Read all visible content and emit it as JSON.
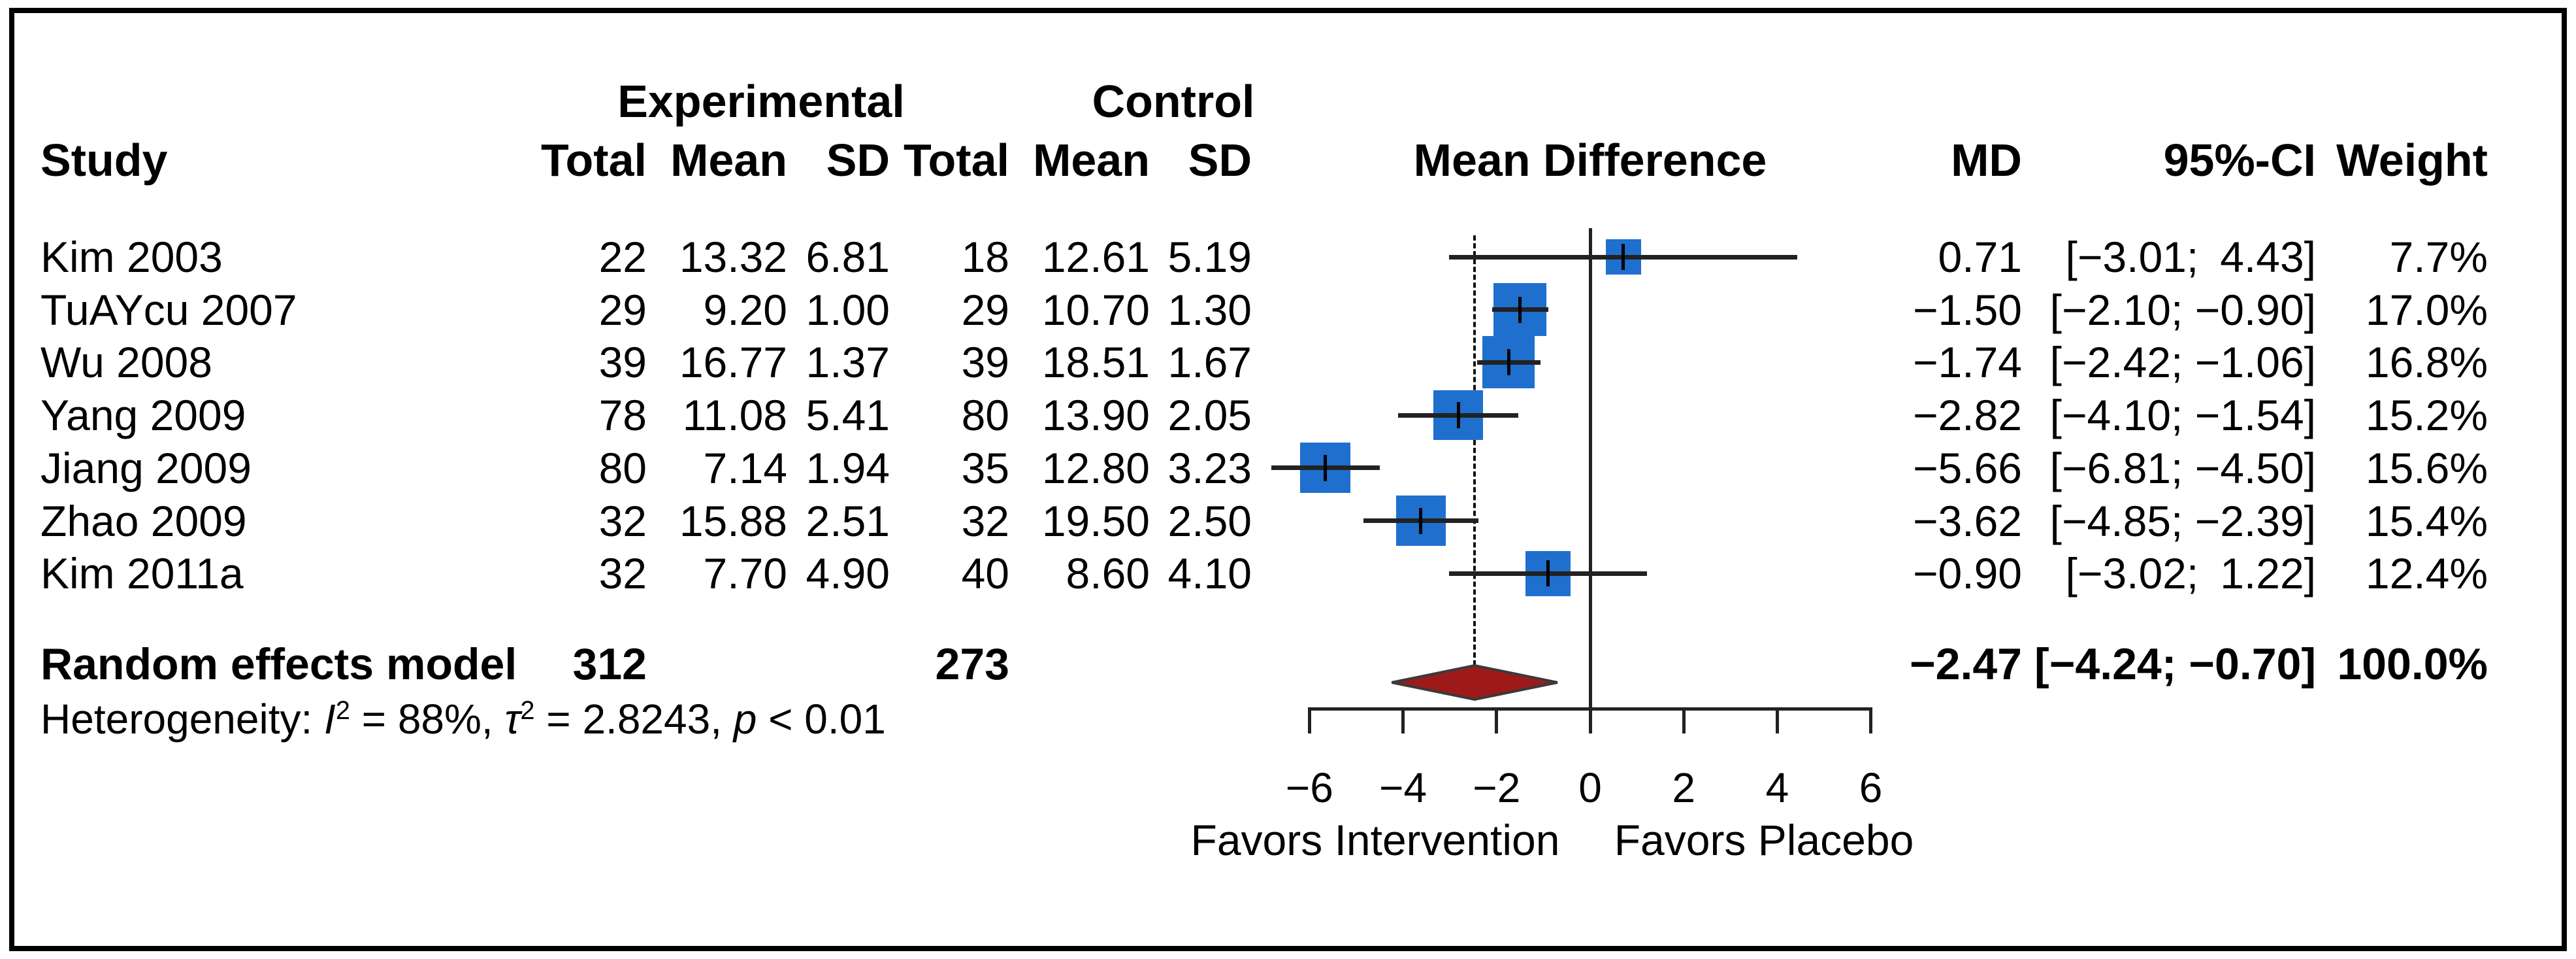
{
  "header": {
    "study": "Study",
    "group_experimental": "Experimental",
    "group_control": "Control",
    "col_total_exp": "Total",
    "col_mean_exp": "Mean",
    "col_sd_exp": "SD",
    "col_total_ctrl": "Total",
    "col_mean_ctrl": "Mean",
    "col_sd_ctrl": "SD",
    "plot_title": "Mean Difference",
    "col_md": "MD",
    "col_ci": "95%-CI",
    "col_weight": "Weight"
  },
  "chart_data": {
    "type": "forest",
    "effect_measure": "Mean Difference",
    "x_axis": {
      "ticks": [
        -6,
        -4,
        -2,
        0,
        2,
        4,
        6
      ],
      "range_shown": [
        -6.81,
        6
      ],
      "zero_line": 0,
      "dashed_reference_line": -2.47,
      "label_left": "Favors Intervention",
      "label_right": "Favors Placebo"
    },
    "studies": [
      {
        "study": "Kim 2003",
        "exp_total": 22,
        "exp_mean": 13.32,
        "exp_sd": 6.81,
        "ctrl_total": 18,
        "ctrl_mean": 12.61,
        "ctrl_sd": 5.19,
        "md": 0.71,
        "ci_low": -3.01,
        "ci_high": 4.43,
        "weight": 7.7
      },
      {
        "study": "TuAYcu 2007",
        "exp_total": 29,
        "exp_mean": 9.2,
        "exp_sd": 1.0,
        "ctrl_total": 29,
        "ctrl_mean": 10.7,
        "ctrl_sd": 1.3,
        "md": -1.5,
        "ci_low": -2.1,
        "ci_high": -0.9,
        "weight": 17.0
      },
      {
        "study": "Wu 2008",
        "exp_total": 39,
        "exp_mean": 16.77,
        "exp_sd": 1.37,
        "ctrl_total": 39,
        "ctrl_mean": 18.51,
        "ctrl_sd": 1.67,
        "md": -1.74,
        "ci_low": -2.42,
        "ci_high": -1.06,
        "weight": 16.8
      },
      {
        "study": "Yang 2009",
        "exp_total": 78,
        "exp_mean": 11.08,
        "exp_sd": 5.41,
        "ctrl_total": 80,
        "ctrl_mean": 13.9,
        "ctrl_sd": 2.05,
        "md": -2.82,
        "ci_low": -4.1,
        "ci_high": -1.54,
        "weight": 15.2
      },
      {
        "study": "Jiang 2009",
        "exp_total": 80,
        "exp_mean": 7.14,
        "exp_sd": 1.94,
        "ctrl_total": 35,
        "ctrl_mean": 12.8,
        "ctrl_sd": 3.23,
        "md": -5.66,
        "ci_low": -6.81,
        "ci_high": -4.5,
        "weight": 15.6
      },
      {
        "study": "Zhao 2009",
        "exp_total": 32,
        "exp_mean": 15.88,
        "exp_sd": 2.51,
        "ctrl_total": 32,
        "ctrl_mean": 19.5,
        "ctrl_sd": 2.5,
        "md": -3.62,
        "ci_low": -4.85,
        "ci_high": -2.39,
        "weight": 15.4
      },
      {
        "study": "Kim 2011a",
        "exp_total": 32,
        "exp_mean": 7.7,
        "exp_sd": 4.9,
        "ctrl_total": 40,
        "ctrl_mean": 8.6,
        "ctrl_sd": 4.1,
        "md": -0.9,
        "ci_low": -3.02,
        "ci_high": 1.22,
        "weight": 12.4
      }
    ],
    "pooled": {
      "label": "Random effects model",
      "exp_total": 312,
      "ctrl_total": 273,
      "md": -2.47,
      "ci_low": -4.24,
      "ci_high": -0.7,
      "weight": 100.0
    },
    "heterogeneity_segments": [
      {
        "t": "Heterogeneity: "
      },
      {
        "t": "I",
        "i": true
      },
      {
        "t": "2",
        "sup": true
      },
      {
        "t": " = 88%, "
      },
      {
        "t": "τ",
        "i": true
      },
      {
        "t": "2",
        "sup": true
      },
      {
        "t": " = 2.8243, "
      },
      {
        "t": "p",
        "i": true
      },
      {
        "t": " < 0.01"
      }
    ],
    "colors": {
      "square": "#1f6fce",
      "diamond_fill": "#9e1a1a",
      "diamond_stroke": "#3a3a3a",
      "lines": "#222222",
      "border": "#000000"
    }
  }
}
